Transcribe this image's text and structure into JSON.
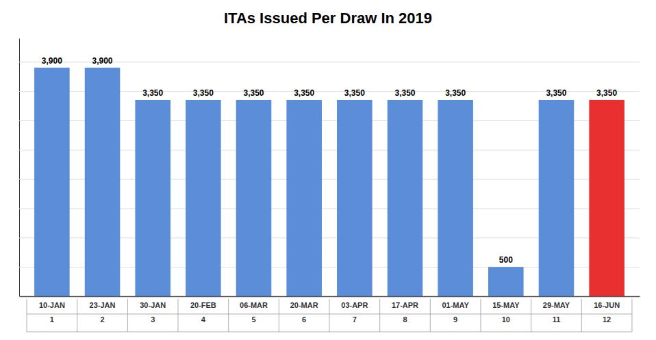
{
  "chart_data": {
    "type": "bar",
    "title": "ITAs Issued Per Draw In 2019",
    "categories": [
      "10-JAN",
      "23-JAN",
      "30-JAN",
      "20-FEB",
      "06-MAR",
      "20-MAR",
      "03-APR",
      "17-APR",
      "01-MAY",
      "15-MAY",
      "29-MAY",
      "16-JUN"
    ],
    "categories_line2": [
      "1",
      "2",
      "3",
      "4",
      "5",
      "6",
      "7",
      "8",
      "9",
      "10",
      "11",
      "12"
    ],
    "values": [
      3900,
      3900,
      3350,
      3350,
      3350,
      3350,
      3350,
      3350,
      3350,
      500,
      3350,
      3350
    ],
    "value_labels": [
      "3,900",
      "3,900",
      "3,350",
      "3,350",
      "3,350",
      "3,350",
      "3,350",
      "3,350",
      "3,350",
      "500",
      "3,350",
      "3,350"
    ],
    "colors": [
      "#5B8DD9",
      "#5B8DD9",
      "#5B8DD9",
      "#5B8DD9",
      "#5B8DD9",
      "#5B8DD9",
      "#5B8DD9",
      "#5B8DD9",
      "#5B8DD9",
      "#5B8DD9",
      "#5B8DD9",
      "#E83030"
    ],
    "ylim": [
      0,
      4400
    ],
    "yticks": [
      0,
      500,
      1000,
      1500,
      2000,
      2500,
      3000,
      3500,
      4000
    ],
    "grid": true,
    "data_labels": true,
    "tick_labels": "x"
  }
}
